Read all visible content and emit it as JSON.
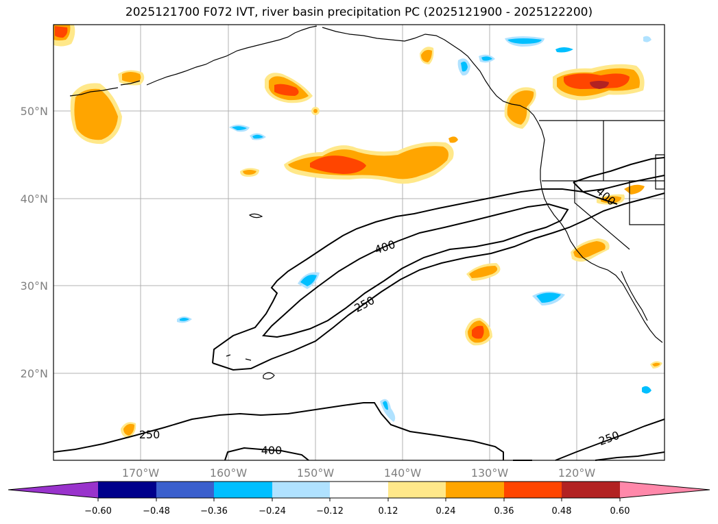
{
  "title": "2025121700 F072 IVT, river basin precipitation PC (2025121900 - 2025122200)",
  "map": {
    "lat_labels": [
      "50°N",
      "40°N",
      "30°N",
      "20°N"
    ],
    "lon_labels": [
      "170°W",
      "160°W",
      "150°W",
      "140°W",
      "130°W",
      "120°W"
    ],
    "contour_labels": [
      "400",
      "250",
      "400",
      "250",
      "400",
      "250"
    ]
  },
  "colorbar": {
    "colors": [
      "#9933cc",
      "#00008b",
      "#3a5fcd",
      "#00bfff",
      "#b0e2ff",
      "#ffffff",
      "#ffe88a",
      "#ffa500",
      "#ff4500",
      "#b22222",
      "#ff88aa"
    ],
    "ticks": [
      "−0.60",
      "−0.48",
      "−0.36",
      "−0.24",
      "−0.12",
      "0.12",
      "0.24",
      "0.36",
      "0.48",
      "0.60"
    ]
  }
}
